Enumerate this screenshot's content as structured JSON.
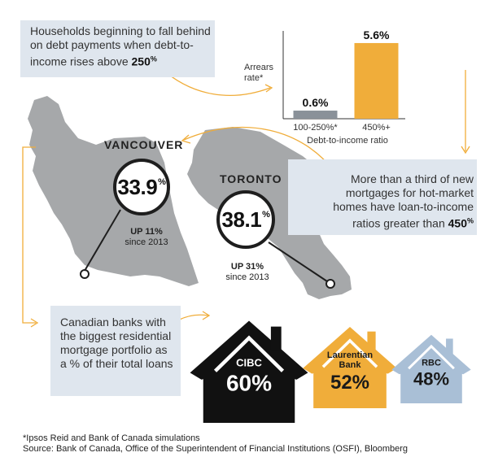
{
  "intro": {
    "text_lead": "Households beginning to fall behind on debt payments when debt-to-income rises above",
    "threshold": "250",
    "pct": "%"
  },
  "mortgage_note": {
    "text_lead": "More than a third of new mortgages for hot-market homes have loan-to-income ratios greater than",
    "threshold": "450",
    "pct": "%"
  },
  "banks_note": "Canadian banks with the biggest residential mortgage portfolio as a % of their total loans",
  "cities": [
    {
      "name": "VANCOUVER",
      "value": "33.9",
      "pct": "%",
      "growth_label": "UP 11%",
      "growth_since": "since 2013"
    },
    {
      "name": "TORONTO",
      "value": "38.1",
      "pct": "%",
      "growth_label": "UP 31%",
      "growth_since": "since 2013"
    }
  ],
  "chart_data": {
    "type": "bar",
    "categories": [
      "100-250%*",
      "450%+"
    ],
    "values": [
      0.6,
      5.6
    ],
    "value_labels": [
      "0.6%",
      "5.6%"
    ],
    "ylabel": "Arrears rate*",
    "xlabel": "Debt-to-income ratio",
    "ylim": [
      0,
      6.5
    ],
    "colors": [
      "#8a9199",
      "#f0ad3a"
    ]
  },
  "banks": [
    {
      "name": "CIBC",
      "value": 60,
      "value_label": "60%",
      "color": "#111111",
      "text_color": "#ffffff"
    },
    {
      "name": "Laurentian Bank",
      "value": 52,
      "value_label": "52%",
      "color": "#f0ad3a",
      "text_color": "#1a1a1a"
    },
    {
      "name": "RBC",
      "value": 48,
      "value_label": "48%",
      "color": "#a9bfd6",
      "text_color": "#1a1a1a"
    }
  ],
  "footnotes": {
    "line1": "*Ipsos Reid and Bank of Canada simulations",
    "line2": "Source: Bank of Canada, Office of the Superintendent of Financial Institutions (OSFI), Bloomberg"
  },
  "colors": {
    "accent": "#f0ad3a",
    "map": "#a6a8aa",
    "box": "#dfe6ee"
  }
}
